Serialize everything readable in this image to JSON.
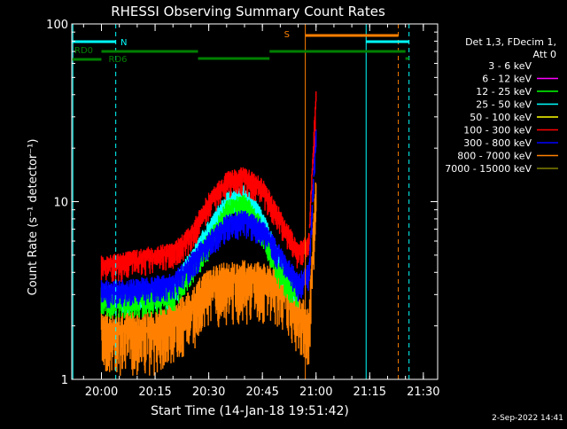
{
  "chart_data": {
    "type": "line",
    "title": "RHESSI Observing Summary Count Rates",
    "xlabel": "Start Time (14-Jan-18 19:51:42)",
    "ylabel": "Count Rate (s⁻¹ detector⁻¹)",
    "y_scale": "log",
    "ylim": [
      1,
      100
    ],
    "xlim": [
      "19:51:42",
      "21:34:00"
    ],
    "x_ticks": [
      "20:00",
      "20:15",
      "20:30",
      "20:45",
      "21:00",
      "21:15",
      "21:30"
    ],
    "y_ticks": [
      "1",
      "10",
      "100"
    ],
    "legend": {
      "placement": "right",
      "header": [
        "Det 1,3, FDecim 1,",
        "Att 0"
      ],
      "entries": [
        {
          "label": "3 - 6 keV",
          "color": "#000000"
        },
        {
          "label": "6 - 12 keV",
          "color": "#ff00ff"
        },
        {
          "label": "12 - 25 keV",
          "color": "#00ff00"
        },
        {
          "label": "25 - 50 keV",
          "color": "#00ffff"
        },
        {
          "label": "50 - 100 keV",
          "color": "#ffff00"
        },
        {
          "label": "100 - 300 keV",
          "color": "#ff0000"
        },
        {
          "label": "300 - 800 keV",
          "color": "#0000ff"
        },
        {
          "label": "800 - 7000 keV",
          "color": "#ff8000"
        },
        {
          "label": "7000 - 15000 keV",
          "color": "#808000"
        }
      ]
    },
    "series": [
      {
        "name": "100 - 300 keV",
        "color": "#ff0000",
        "x": [
          "20:00",
          "20:05",
          "20:10",
          "20:15",
          "20:20",
          "20:25",
          "20:30",
          "20:35",
          "20:40",
          "20:45",
          "20:50",
          "20:55",
          "20:58",
          "21:00"
        ],
        "y": [
          4.5,
          4.5,
          4.8,
          5.0,
          5.2,
          6.5,
          10.0,
          13.0,
          14.0,
          12.0,
          8.0,
          5.2,
          6.0,
          40.0
        ]
      },
      {
        "name": "300 - 800 keV",
        "color": "#0000ff",
        "x": [
          "20:00",
          "20:05",
          "20:10",
          "20:15",
          "20:20",
          "20:25",
          "20:30",
          "20:35",
          "20:40",
          "20:45",
          "20:50",
          "20:55",
          "20:58",
          "21:00"
        ],
        "y": [
          3.2,
          3.2,
          3.3,
          3.4,
          3.5,
          4.5,
          6.0,
          7.5,
          8.0,
          7.0,
          5.0,
          3.5,
          4.0,
          25.0
        ]
      },
      {
        "name": "12 - 25 keV",
        "color": "#00ff00",
        "x": [
          "20:00",
          "20:10",
          "20:20",
          "20:30",
          "20:35",
          "20:40",
          "20:45",
          "20:50",
          "20:55"
        ],
        "y": [
          2.8,
          2.8,
          3.0,
          6.0,
          9.0,
          10.0,
          7.0,
          4.0,
          3.0
        ]
      },
      {
        "name": "25 - 50 keV",
        "color": "#00ffff",
        "x": [
          "20:00",
          "20:10",
          "20:20",
          "20:30",
          "20:35",
          "20:40",
          "20:45",
          "20:50",
          "20:55"
        ],
        "y": [
          3.0,
          3.0,
          3.2,
          7.0,
          10.0,
          11.0,
          8.0,
          4.5,
          3.2
        ]
      },
      {
        "name": "800 - 7000 keV",
        "color": "#ff8000",
        "x": [
          "20:00",
          "20:15",
          "20:25",
          "20:30",
          "20:40",
          "20:50",
          "20:58",
          "21:00"
        ],
        "y": [
          1.9,
          1.9,
          2.5,
          3.5,
          3.7,
          3.5,
          2.0,
          12.0
        ]
      }
    ],
    "flags": [
      {
        "label": "RD0",
        "color": "#008000",
        "segments": [
          [
            "19:51:42",
            "20:00"
          ]
        ]
      },
      {
        "label": "RD6",
        "color": "#008000",
        "segments": [
          [
            "20:00",
            "20:27"
          ],
          [
            "20:27",
            "20:47"
          ],
          [
            "20:47",
            "21:25"
          ],
          [
            "21:25",
            "21:26"
          ]
        ]
      },
      {
        "label": "N",
        "color": "#00ffff",
        "segments": [
          [
            "19:51:42",
            "20:04"
          ],
          [
            "21:14",
            "21:26"
          ]
        ]
      },
      {
        "label": "S",
        "color": "#ff8000",
        "segments": [
          [
            "20:57",
            "21:23"
          ]
        ]
      }
    ],
    "vertical_lines": [
      {
        "x": "19:52",
        "color": "#00ffff",
        "style": "solid"
      },
      {
        "x": "20:04",
        "color": "#00ffff",
        "style": "dashed"
      },
      {
        "x": "20:57",
        "color": "#ff8000",
        "style": "solid"
      },
      {
        "x": "21:14",
        "color": "#00ffff",
        "style": "solid"
      },
      {
        "x": "21:23",
        "color": "#ff8000",
        "style": "dashed"
      },
      {
        "x": "21:26",
        "color": "#00ffff",
        "style": "dashed"
      }
    ]
  },
  "footer": {
    "timestamp": "2-Sep-2022 14:41"
  }
}
